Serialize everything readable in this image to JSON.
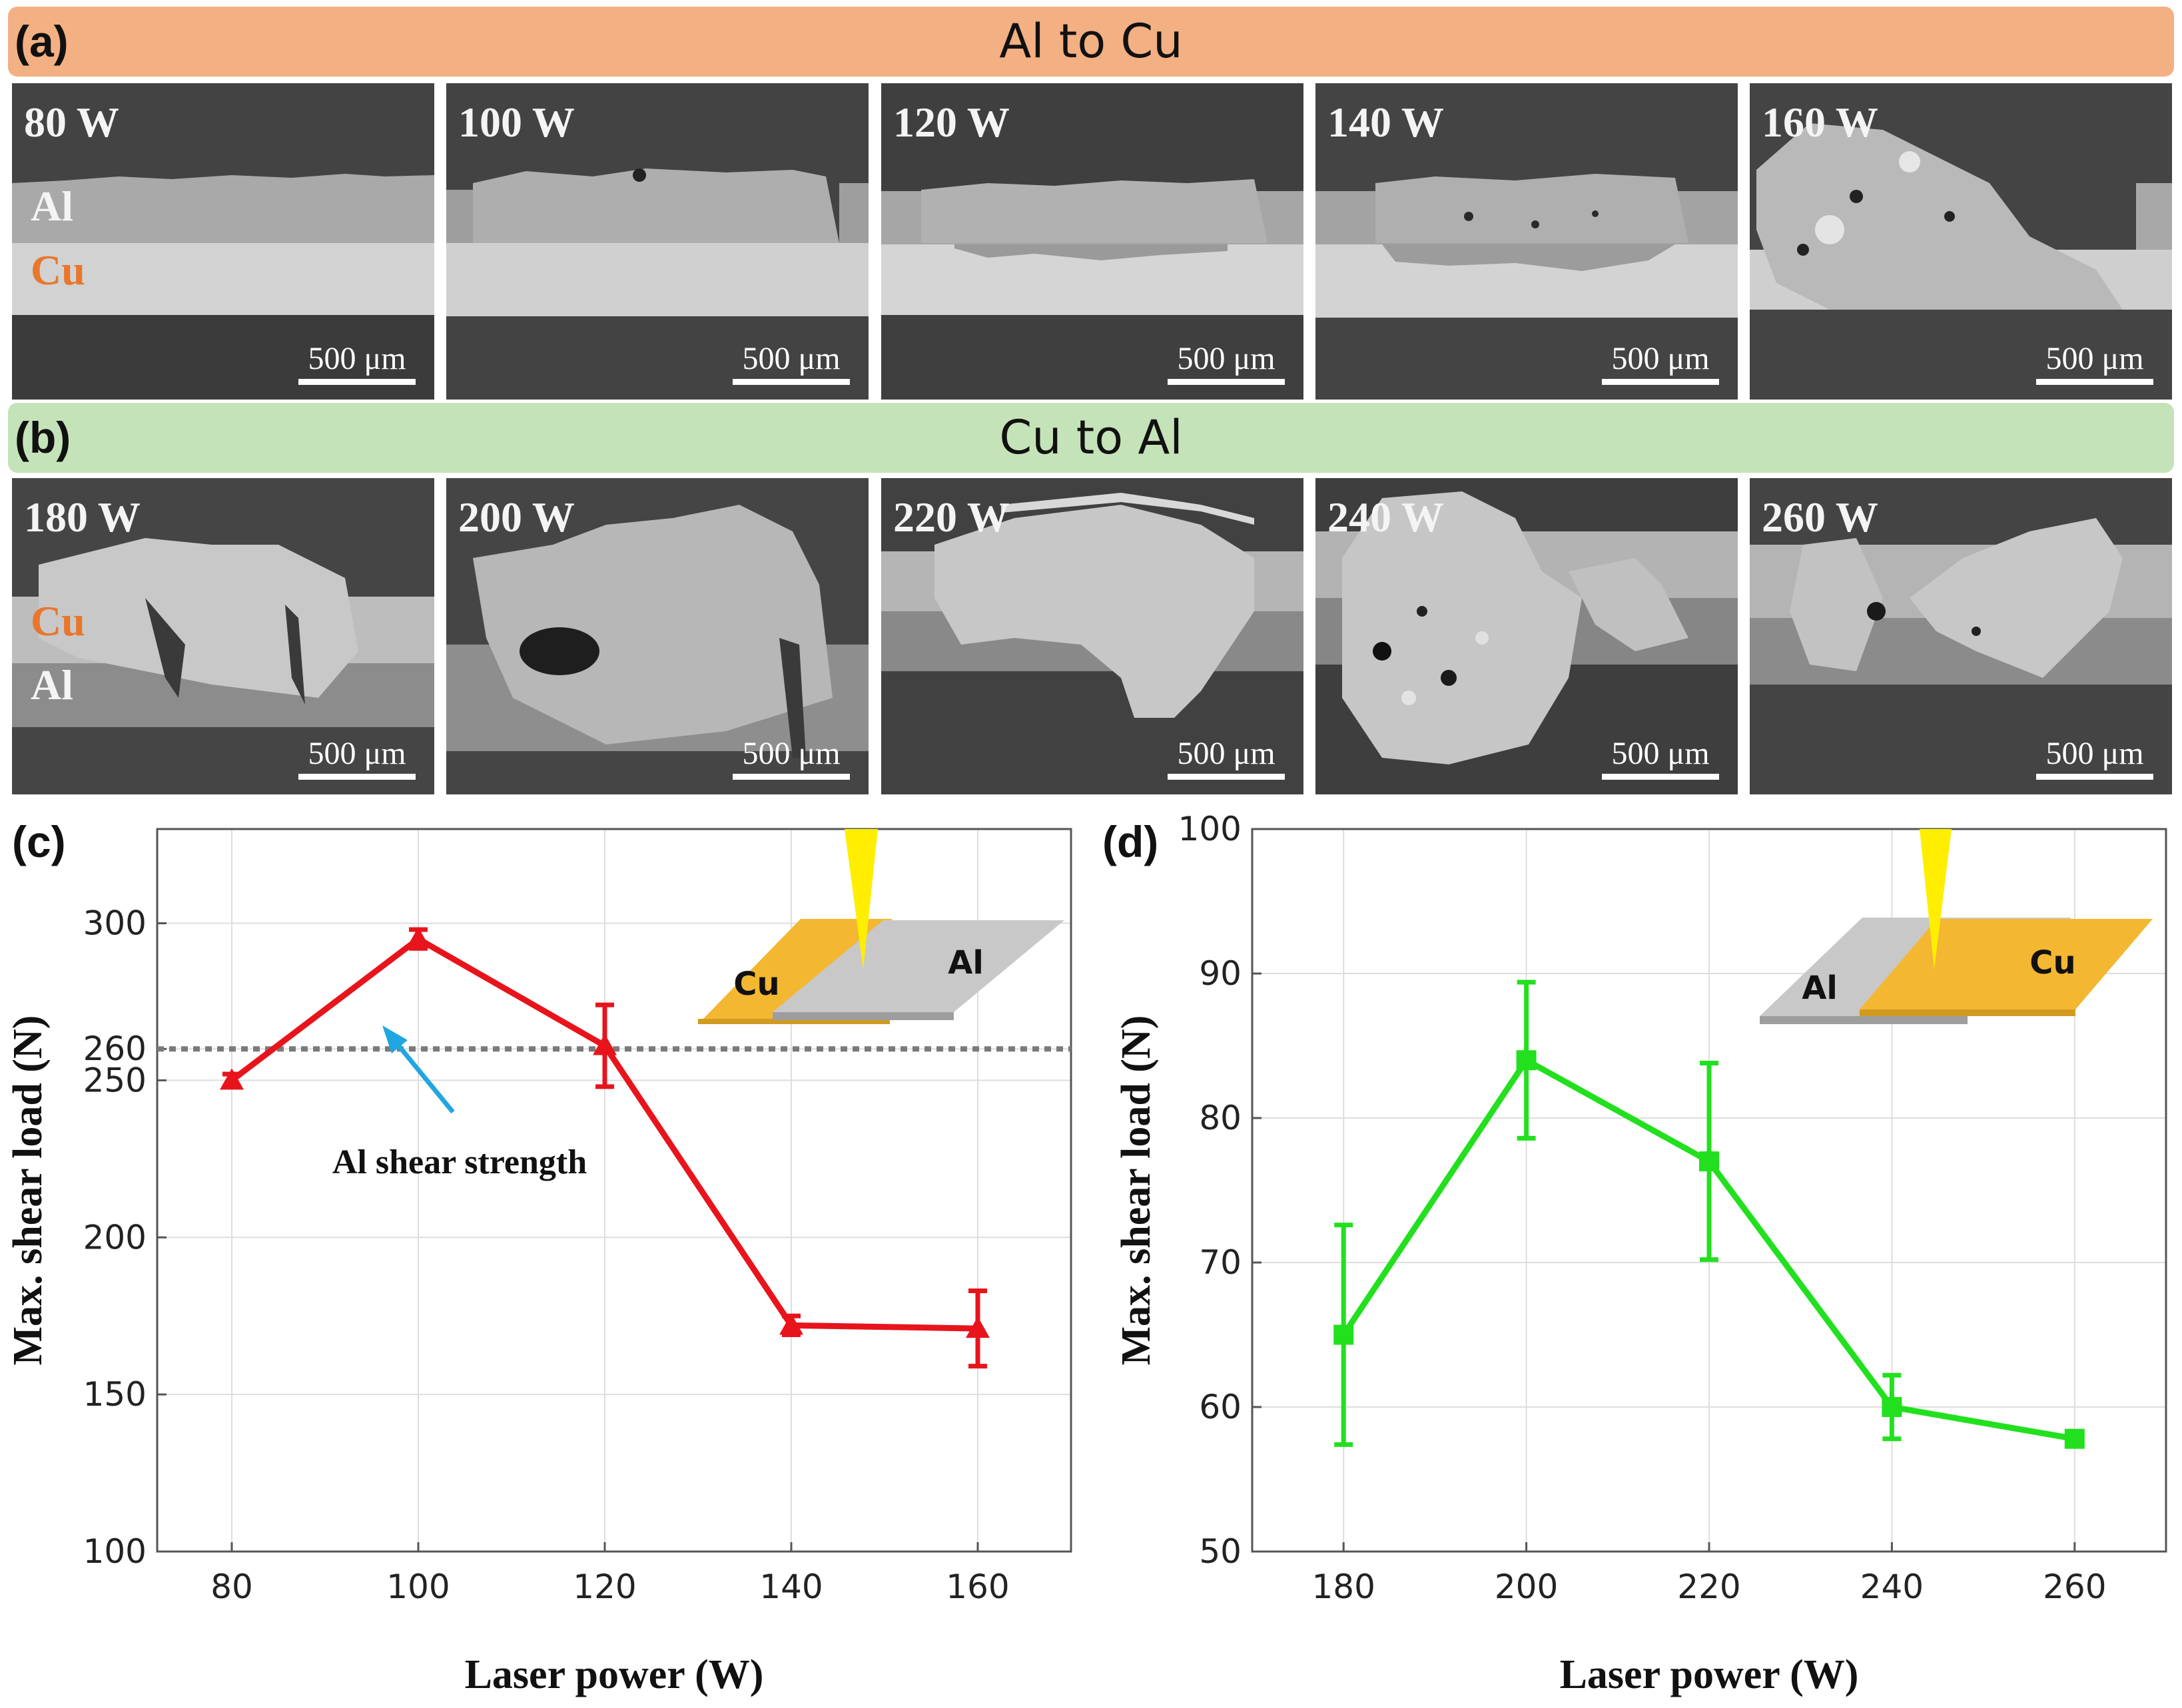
{
  "figure": {
    "panel_a": {
      "letter": "(a)",
      "title": "Al to Cu",
      "color": "#f3b083"
    },
    "panel_b": {
      "letter": "(b)",
      "title": "Cu to Al",
      "color": "#c5e3b8"
    },
    "micrographs_a": {
      "powers": [
        "80 W",
        "100 W",
        "120 W",
        "140 W",
        "160 W"
      ],
      "top_layer": "Al",
      "bottom_layer": "Cu",
      "scale_bar": "500 μm"
    },
    "micrographs_b": {
      "powers": [
        "180 W",
        "200 W",
        "220 W",
        "240 W",
        "260 W"
      ],
      "top_layer": "Cu",
      "bottom_layer": "Al",
      "scale_bar": "500 μm"
    },
    "panel_c": {
      "letter": "(c)"
    },
    "panel_d": {
      "letter": "(d)"
    }
  },
  "chart_data": [
    {
      "type": "line",
      "id": "c",
      "title": "",
      "xlabel": "Laser power (W)",
      "ylabel": "Max. shear load (N)",
      "xlim": [
        72,
        170
      ],
      "ylim": [
        100,
        330
      ],
      "xticks": [
        80,
        100,
        120,
        140,
        160
      ],
      "yticks": [
        100,
        150,
        200,
        250,
        260,
        300
      ],
      "series": [
        {
          "name": "Al to Cu",
          "color": "#e8141c",
          "marker": "triangle",
          "x": [
            80,
            100,
            120,
            140,
            160
          ],
          "y": [
            250,
            295,
            261,
            172,
            171
          ],
          "err": [
            2,
            3,
            13,
            3,
            12
          ]
        }
      ],
      "reference_line": {
        "y": 260,
        "label": "Al shear strength",
        "arrow_color": "#20a6e0"
      },
      "inset": {
        "left_label": "Cu",
        "right_label": "Al"
      },
      "grid": true
    },
    {
      "type": "line",
      "id": "d",
      "title": "",
      "xlabel": "Laser power (W)",
      "ylabel": "Max. shear load (N)",
      "xlim": [
        170,
        270
      ],
      "ylim": [
        50,
        100
      ],
      "xticks": [
        180,
        200,
        220,
        240,
        260
      ],
      "yticks": [
        50,
        60,
        70,
        80,
        90,
        100
      ],
      "series": [
        {
          "name": "Cu to Al",
          "color": "#22e01e",
          "marker": "square",
          "x": [
            180,
            200,
            220,
            240,
            260
          ],
          "y": [
            65,
            84,
            77,
            60,
            57.8
          ],
          "err": [
            7.6,
            5.4,
            6.8,
            2.2,
            0.3
          ]
        }
      ],
      "inset": {
        "left_label": "Al",
        "right_label": "Cu"
      },
      "grid": true
    }
  ]
}
